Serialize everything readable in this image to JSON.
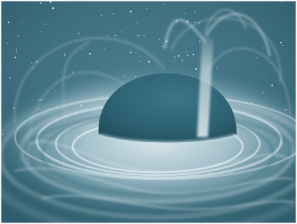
{
  "image": {
    "subject": "black-hole-illustration",
    "palette": {
      "space": "#3d6d7e",
      "space_dark": "#2e5b6b",
      "disk_light": "#c9dde4",
      "disk_mid": "#8fb3c0",
      "sphere": "#2f6474",
      "sphere_edge": "#3a7384",
      "jet": "#dbe9ee",
      "star": "#ffffff",
      "border": "#f4f7f8"
    }
  }
}
